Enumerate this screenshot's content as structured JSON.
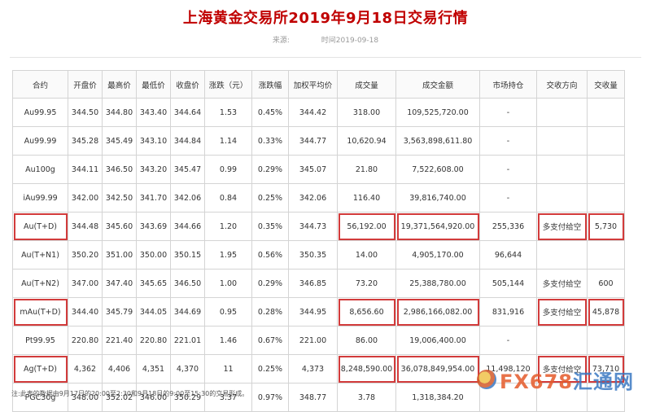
{
  "page": {
    "title": "上海黄金交易所2019年9月18日交易行情",
    "source_label": "来源:",
    "time_label": "时间2019-09-18"
  },
  "table": {
    "headers": [
      "合约",
      "开盘价",
      "最高价",
      "最低价",
      "收盘价",
      "涨跌（元）",
      "涨跌幅",
      "加权平均价",
      "成交量",
      "成交金额",
      "市场持仓",
      "交收方向",
      "交收量"
    ],
    "rows": [
      [
        "Au99.95",
        "344.50",
        "344.80",
        "343.40",
        "344.64",
        "1.53",
        "0.45%",
        "344.42",
        "318.00",
        "109,525,720.00",
        "-",
        "",
        ""
      ],
      [
        "Au99.99",
        "345.28",
        "345.49",
        "343.10",
        "344.84",
        "1.14",
        "0.33%",
        "344.77",
        "10,620.94",
        "3,563,898,611.80",
        "-",
        "",
        ""
      ],
      [
        "Au100g",
        "344.11",
        "346.50",
        "343.20",
        "345.47",
        "0.99",
        "0.29%",
        "345.07",
        "21.80",
        "7,522,608.00",
        "-",
        "",
        ""
      ],
      [
        "iAu99.99",
        "342.00",
        "342.50",
        "341.70",
        "342.06",
        "0.84",
        "0.25%",
        "342.06",
        "116.40",
        "39,816,740.00",
        "-",
        "",
        ""
      ],
      [
        "Au(T+D)",
        "344.48",
        "345.60",
        "343.69",
        "344.66",
        "1.20",
        "0.35%",
        "344.73",
        "56,192.00",
        "19,371,564,920.00",
        "255,336",
        "多支付给空",
        "5,730"
      ],
      [
        "Au(T+N1)",
        "350.20",
        "351.00",
        "350.00",
        "350.15",
        "1.95",
        "0.56%",
        "350.35",
        "14.00",
        "4,905,170.00",
        "96,644",
        "",
        ""
      ],
      [
        "Au(T+N2)",
        "347.00",
        "347.40",
        "345.65",
        "346.50",
        "1.00",
        "0.29%",
        "346.85",
        "73.20",
        "25,388,780.00",
        "505,144",
        "多支付给空",
        "600"
      ],
      [
        "mAu(T+D)",
        "344.40",
        "345.79",
        "344.05",
        "344.69",
        "0.95",
        "0.28%",
        "344.95",
        "8,656.60",
        "2,986,166,082.00",
        "831,916",
        "多支付给空",
        "45,878"
      ],
      [
        "Pt99.95",
        "220.80",
        "221.40",
        "220.80",
        "221.01",
        "1.46",
        "0.67%",
        "221.00",
        "86.00",
        "19,006,400.00",
        "-",
        "",
        ""
      ],
      [
        "Ag(T+D)",
        "4,362",
        "4,406",
        "4,351",
        "4,370",
        "11",
        "0.25%",
        "4,373",
        "8,248,590.00",
        "36,078,849,954.00",
        "11,498,120",
        "多支付给空",
        "73,710"
      ],
      [
        "PGC30g",
        "348.00",
        "352.02",
        "346.00",
        "350.29",
        "3.37",
        "0.97%",
        "348.77",
        "3.78",
        "1,318,384.20",
        "",
        "",
        ""
      ]
    ],
    "highlights": [
      {
        "row": 4,
        "cols": [
          0,
          8,
          9,
          11,
          12
        ]
      },
      {
        "row": 7,
        "cols": [
          0,
          8,
          9,
          11,
          12
        ]
      },
      {
        "row": 9,
        "cols": [
          0,
          8,
          9,
          11,
          12
        ]
      }
    ],
    "highlight_color": "#d23b3b"
  },
  "footnote": "注:此表的数据由9月17日的20:00至2:30和9月18日的9:00至15:30的交易形成。",
  "watermark": {
    "text_latin": "FX678",
    "text_cn": "汇通网",
    "accent": "#e45a2a",
    "secondary": "#3a78c2"
  }
}
